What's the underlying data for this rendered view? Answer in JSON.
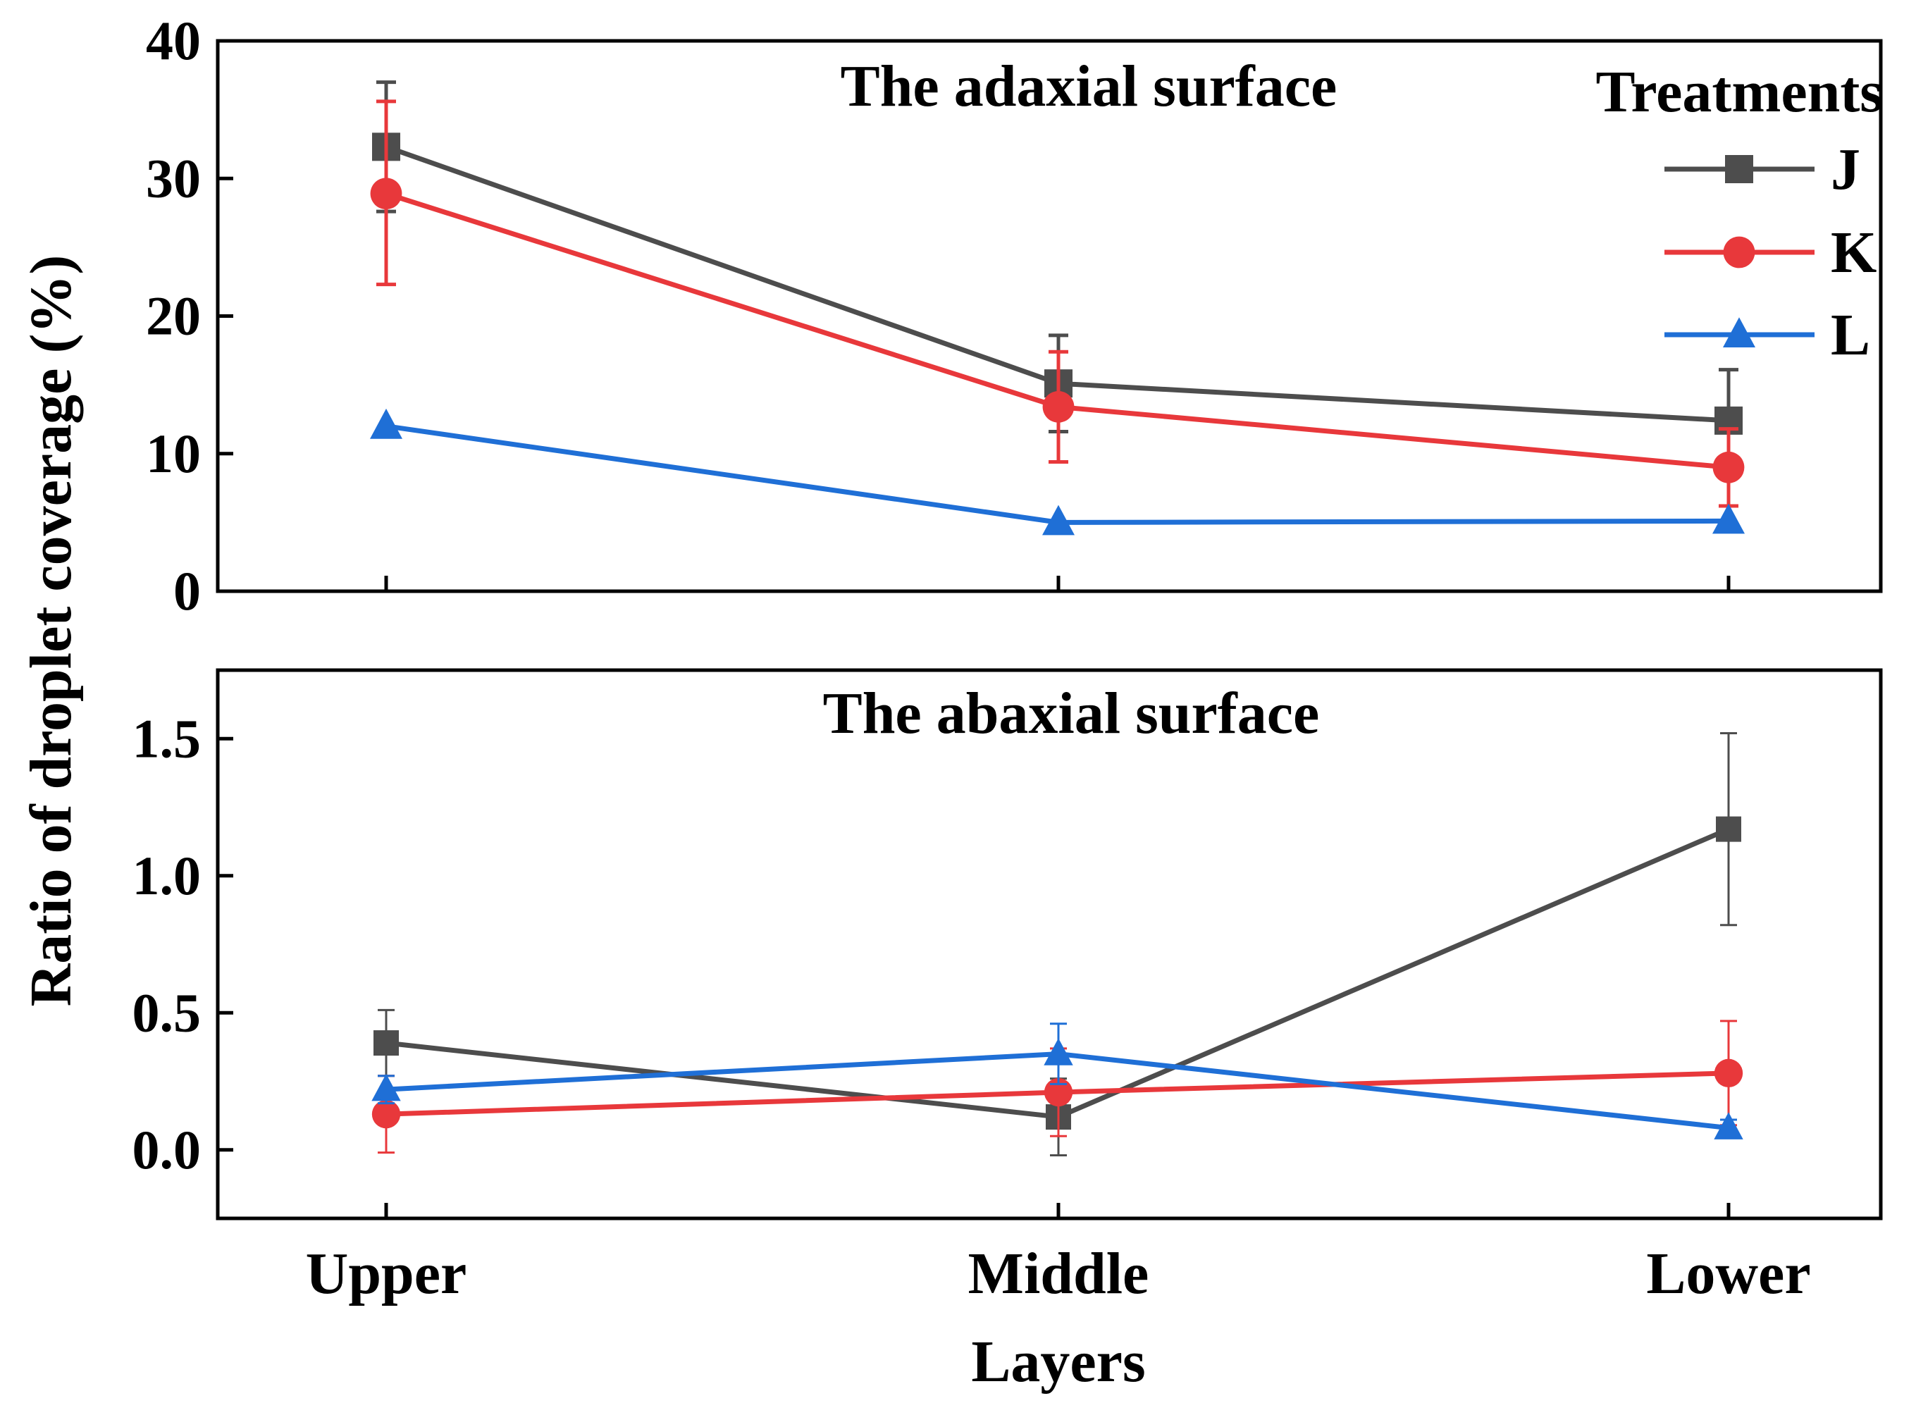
{
  "chart_data": {
    "type": "line",
    "xlabel": "Layers",
    "ylabel": "Ratio of droplet coverage (%)",
    "categories": [
      "Upper",
      "Middle",
      "Lower"
    ],
    "legend": {
      "title": "Treatments",
      "placement": "top-right",
      "entries": [
        {
          "name": "J",
          "color": "#4d4d4d",
          "marker": "square"
        },
        {
          "name": "K",
          "color": "#e8383b",
          "marker": "circle"
        },
        {
          "name": "L",
          "color": "#1f6fd6",
          "marker": "triangle"
        }
      ]
    },
    "panels": [
      {
        "title": "The adaxial surface",
        "ylim": [
          0,
          40
        ],
        "yticks": [
          0,
          10,
          20,
          30,
          40
        ],
        "ytick_labels": [
          "0",
          "10",
          "20",
          "30",
          "40"
        ],
        "series": [
          {
            "name": "J",
            "values": [
              32.3,
              15.1,
              12.4
            ],
            "err_low": [
              27.6,
              11.6,
              8.8
            ],
            "err_high": [
              37.0,
              18.6,
              16.1
            ]
          },
          {
            "name": "K",
            "values": [
              28.9,
              13.4,
              9.0
            ],
            "err_low": [
              22.3,
              9.4,
              6.2
            ],
            "err_high": [
              35.6,
              17.4,
              11.8
            ]
          },
          {
            "name": "L",
            "values": [
              12.0,
              5.0,
              5.1
            ],
            "err_low": [
              11.7,
              4.7,
              4.8
            ],
            "err_high": [
              12.3,
              5.3,
              5.4
            ]
          }
        ]
      },
      {
        "title": "The abaxial surface",
        "ylim": [
          -0.25,
          1.75
        ],
        "yticks": [
          0.0,
          0.5,
          1.0,
          1.5
        ],
        "ytick_labels": [
          "0.0",
          "0.5",
          "1.0",
          "1.5"
        ],
        "series": [
          {
            "name": "J",
            "values": [
              0.39,
              0.12,
              1.17
            ],
            "err_low": [
              0.27,
              -0.02,
              0.82
            ],
            "err_high": [
              0.51,
              0.26,
              1.52
            ]
          },
          {
            "name": "K",
            "values": [
              0.13,
              0.21,
              0.28
            ],
            "err_low": [
              -0.01,
              0.05,
              0.09
            ],
            "err_high": [
              0.27,
              0.37,
              0.47
            ]
          },
          {
            "name": "L",
            "values": [
              0.22,
              0.35,
              0.08
            ],
            "err_low": [
              0.17,
              0.24,
              0.05
            ],
            "err_high": [
              0.27,
              0.46,
              0.11
            ]
          }
        ]
      }
    ]
  }
}
